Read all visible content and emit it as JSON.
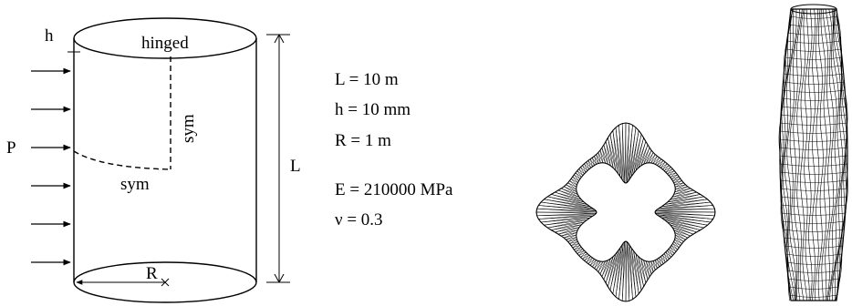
{
  "schematic": {
    "thickness_label": "h",
    "top_boundary_label": "hinged",
    "pressure_label": "P",
    "symmetry_vertical_label": "sym",
    "symmetry_horizontal_label": "sym",
    "length_label": "L",
    "radius_label": "R"
  },
  "parameters": {
    "length": "L = 10 m",
    "thickness": "h = 10 mm",
    "radius": "R = 1 m",
    "youngs_modulus": "E = 210000 MPa",
    "poisson_ratio": "ν = 0.3"
  },
  "deformed_views": {
    "top_view": "buckled shell cross-section mesh (four-lobe mode)",
    "side_view": "buckled shell side mesh"
  },
  "colors": {
    "line": "#000000",
    "background": "#ffffff"
  }
}
